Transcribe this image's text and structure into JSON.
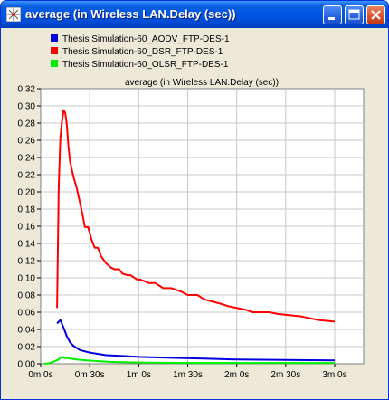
{
  "window": {
    "title": "average (in Wireless LAN.Delay (sec))",
    "icons": {
      "app": "star-app-icon",
      "minimize": "minimize-icon",
      "maximize": "maximize-icon",
      "close": "close-icon"
    }
  },
  "colors": {
    "aodv": "#0000dd",
    "dsr": "#ff0000",
    "olsr": "#00ee00",
    "plot_bg": "#ffffff",
    "window_bg": "#ece9d8",
    "grid": "#c8c8c8"
  },
  "chart_data": {
    "type": "line",
    "title": "average (in Wireless LAN.Delay (sec))",
    "xlabel": "",
    "ylabel": "",
    "xlim": [
      0,
      200
    ],
    "ylim": [
      0,
      0.32
    ],
    "x_unit": "seconds",
    "grid": true,
    "legend_position": "top-left",
    "xticks": [
      {
        "value": 0,
        "label": "0m 0s"
      },
      {
        "value": 30,
        "label": "0m 30s"
      },
      {
        "value": 60,
        "label": "1m 0s"
      },
      {
        "value": 90,
        "label": "1m 30s"
      },
      {
        "value": 120,
        "label": "2m 0s"
      },
      {
        "value": 150,
        "label": "2m 30s"
      },
      {
        "value": 180,
        "label": "3m 0s"
      }
    ],
    "yticks": [
      0.0,
      0.02,
      0.04,
      0.06,
      0.08,
      0.1,
      0.12,
      0.14,
      0.16,
      0.18,
      0.2,
      0.22,
      0.24,
      0.26,
      0.28,
      0.3,
      0.32
    ],
    "ytick_labels": [
      "0.00",
      "0.02",
      "0.04",
      "0.06",
      "0.08",
      "0.10",
      "0.12",
      "0.14",
      "0.16",
      "0.18",
      "0.20",
      "0.22",
      "0.24",
      "0.26",
      "0.28",
      "0.30",
      "0.32"
    ],
    "series": [
      {
        "name": "Thesis Simulation-60_AODV_FTP-DES-1",
        "color": "#0000dd",
        "x": [
          10,
          12,
          14,
          16,
          18,
          20,
          24,
          30,
          40,
          50,
          60,
          70,
          80,
          100,
          120,
          150,
          180
        ],
        "y": [
          0.047,
          0.051,
          0.042,
          0.032,
          0.025,
          0.021,
          0.016,
          0.013,
          0.01,
          0.009,
          0.008,
          0.0075,
          0.007,
          0.006,
          0.005,
          0.0045,
          0.004
        ]
      },
      {
        "name": "Thesis Simulation-60_DSR_FTP-DES-1",
        "color": "#ff0000",
        "x": [
          10,
          11,
          12,
          13,
          14,
          15,
          16,
          17,
          18,
          20,
          22,
          24,
          26,
          27,
          29,
          31,
          33,
          35,
          37,
          40,
          43,
          45,
          48,
          50,
          53,
          55,
          59,
          61,
          66,
          70,
          75,
          80,
          86,
          90,
          96,
          100,
          110,
          115,
          125,
          130,
          140,
          145,
          160,
          170,
          175,
          180
        ],
        "y": [
          0.065,
          0.205,
          0.262,
          0.282,
          0.295,
          0.292,
          0.278,
          0.252,
          0.235,
          0.218,
          0.205,
          0.188,
          0.17,
          0.159,
          0.159,
          0.145,
          0.135,
          0.135,
          0.125,
          0.117,
          0.112,
          0.11,
          0.11,
          0.105,
          0.103,
          0.103,
          0.098,
          0.098,
          0.094,
          0.094,
          0.088,
          0.088,
          0.084,
          0.08,
          0.08,
          0.075,
          0.07,
          0.067,
          0.063,
          0.06,
          0.06,
          0.058,
          0.055,
          0.051,
          0.05,
          0.049
        ]
      },
      {
        "name": "Thesis Simulation-60_OLSR_FTP-DES-1",
        "color": "#00ee00",
        "x": [
          2,
          6,
          10,
          13,
          15,
          18,
          22,
          28,
          35,
          45,
          60,
          90,
          120,
          150,
          180
        ],
        "y": [
          0.0,
          0.001,
          0.004,
          0.008,
          0.007,
          0.006,
          0.005,
          0.004,
          0.003,
          0.002,
          0.0015,
          0.001,
          0.001,
          0.001,
          0.001
        ]
      }
    ]
  }
}
